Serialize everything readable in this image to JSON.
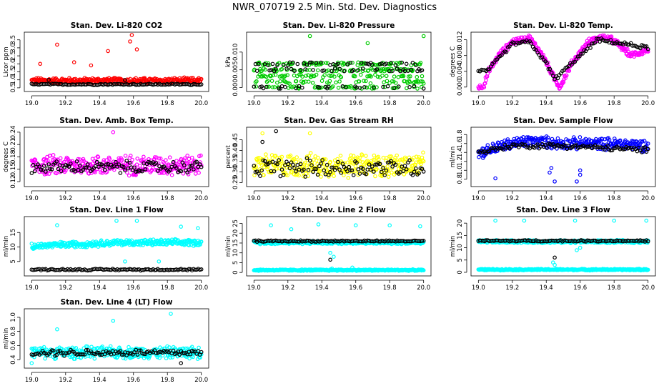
{
  "figure_title": "NWR_070719  2.5 Min. Std. Dev. Diagnostics",
  "colors": {
    "red": "#ff0000",
    "green": "#00cc00",
    "magenta": "#ff00ff",
    "yellow": "#ffff00",
    "blue": "#0000ff",
    "cyan": "#00ffff",
    "black": "#000000"
  },
  "chart_data": [
    {
      "type": "scatter",
      "title": "Stan. Dev. Li-820 CO2",
      "ylabel": "Licor ppm",
      "x_ticks": [
        "19.0",
        "19.2",
        "19.4",
        "19.6",
        "19.8",
        "20.0"
      ],
      "xlim": [
        19.0,
        20.0
      ],
      "y_ticks": [
        "0.5",
        "1.0",
        "1.5",
        "2.0",
        "2.5",
        "3.0",
        "3.5"
      ],
      "y_tick_values": [
        0.5,
        1.0,
        1.5,
        2.0,
        2.5,
        3.0,
        3.5
      ],
      "ylim": [
        0.45,
        3.8
      ],
      "series": [
        {
          "color": "red",
          "base": 0.95,
          "spread": 0.3,
          "outliers": [
            [
              19.05,
              2.0
            ],
            [
              19.15,
              3.2
            ],
            [
              19.25,
              2.1
            ],
            [
              19.45,
              2.8
            ],
            [
              19.58,
              3.4
            ],
            [
              19.59,
              3.8
            ],
            [
              19.62,
              2.9
            ],
            [
              19.35,
              1.9
            ]
          ]
        },
        {
          "color": "black",
          "base": 0.72,
          "spread": 0.08,
          "outliers": [
            [
              19.1,
              1.0
            ],
            [
              19.55,
              0.98
            ]
          ]
        }
      ]
    },
    {
      "type": "scatter",
      "title": "Stan. Dev. Li-820 Pressure",
      "ylabel": "kPa",
      "x_ticks": [
        "19.0",
        "19.2",
        "19.4",
        "19.6",
        "19.8",
        "20.0"
      ],
      "xlim": [
        19.0,
        20.0
      ],
      "y_ticks": [
        "0.000",
        "0.005",
        "0.010"
      ],
      "y_tick_values": [
        0.0,
        0.005,
        0.01
      ],
      "ylim": [
        -0.0003,
        0.0148
      ],
      "series": [
        {
          "color": "green",
          "levels": [
            0.0,
            0.0015,
            0.0033,
            0.005,
            0.0067
          ],
          "outliers": [
            [
              19.33,
              0.0145
            ],
            [
              19.67,
              0.0125
            ],
            [
              20.0,
              0.0145
            ]
          ]
        },
        {
          "color": "black",
          "levels": [
            0.0,
            0.005,
            0.0067
          ],
          "outliers": []
        }
      ]
    },
    {
      "type": "scatter",
      "title": "Stan. Dev. Li-820 Temp.",
      "ylabel": "degrees C",
      "x_ticks": [
        "19.0",
        "19.2",
        "19.4",
        "19.6",
        "19.8",
        "20.0"
      ],
      "xlim": [
        19.0,
        20.0
      ],
      "y_ticks": [
        "0.000",
        "0.004",
        "0.008",
        "0.012"
      ],
      "y_tick_values": [
        0.0,
        0.004,
        0.008,
        0.012
      ],
      "ylim": [
        -0.0004,
        0.0132
      ],
      "series": [
        {
          "color": "magenta",
          "curve": [
            [
              19.0,
              0.0
            ],
            [
              19.03,
              0.0
            ],
            [
              19.06,
              0.004
            ],
            [
              19.12,
              0.008
            ],
            [
              19.2,
              0.0115
            ],
            [
              19.3,
              0.0125
            ],
            [
              19.38,
              0.008
            ],
            [
              19.45,
              0.002
            ],
            [
              19.48,
              0.0
            ],
            [
              19.55,
              0.006
            ],
            [
              19.65,
              0.0115
            ],
            [
              19.75,
              0.013
            ],
            [
              19.82,
              0.011
            ],
            [
              19.9,
              0.008
            ],
            [
              20.0,
              0.0095
            ]
          ],
          "spread": 0.0013
        },
        {
          "color": "black",
          "curve": [
            [
              19.05,
              0.004
            ],
            [
              19.2,
              0.011
            ],
            [
              19.3,
              0.0115
            ],
            [
              19.4,
              0.006
            ],
            [
              19.45,
              0.002
            ],
            [
              19.55,
              0.006
            ],
            [
              19.7,
              0.012
            ],
            [
              19.85,
              0.011
            ],
            [
              20.0,
              0.01
            ]
          ],
          "spread": 0.0008
        }
      ]
    },
    {
      "type": "scatter",
      "title": "Stan. Dev. Amb. Box Temp.",
      "ylabel": "degrees C",
      "x_ticks": [
        "19.0",
        "19.2",
        "19.4",
        "19.6",
        "19.8",
        "20.0"
      ],
      "xlim": [
        19.0,
        20.0
      ],
      "y_ticks": [
        "0.12",
        "0.15",
        "0.18",
        "0.21",
        "0.24"
      ],
      "y_tick_values": [
        0.12,
        0.15,
        0.18,
        0.21,
        0.24
      ],
      "ylim": [
        0.115,
        0.245
      ],
      "series": [
        {
          "color": "magenta",
          "base": 0.16,
          "spread": 0.04,
          "outliers": [
            [
              19.48,
              0.24
            ]
          ]
        },
        {
          "color": "black",
          "base": 0.155,
          "spread": 0.025,
          "outliers": []
        }
      ]
    },
    {
      "type": "scatter",
      "title": "Stan. Dev. Gas Stream RH",
      "ylabel": "percent",
      "x_ticks": [
        "19.0",
        "19.2",
        "19.4",
        "19.6",
        "19.8",
        "20.0"
      ],
      "xlim": [
        19.0,
        20.0
      ],
      "y_ticks": [
        "0.25",
        "0.30",
        "0.35",
        "0.40",
        "0.45"
      ],
      "y_tick_values": [
        0.25,
        0.3,
        0.35,
        0.4,
        0.45
      ],
      "ylim": [
        0.245,
        0.495
      ],
      "series": [
        {
          "color": "yellow",
          "base": 0.33,
          "spread": 0.09,
          "outliers": [
            [
              19.05,
              0.48
            ],
            [
              19.33,
              0.48
            ]
          ]
        },
        {
          "color": "black",
          "base": 0.32,
          "spread": 0.07,
          "outliers": [
            [
              19.13,
              0.49
            ],
            [
              19.05,
              0.44
            ]
          ]
        }
      ]
    },
    {
      "type": "scatter",
      "title": "Stan. Dev. Sample Flow",
      "ylabel": "ml/min",
      "x_ticks": [
        "19.0",
        "19.2",
        "19.4",
        "19.6",
        "19.8",
        "20.0"
      ],
      "xlim": [
        19.0,
        20.0
      ],
      "y_ticks": [
        "0.8",
        "1.0",
        "1.2",
        "1.4",
        "1.6",
        "1.8"
      ],
      "y_tick_values": [
        0.8,
        1.0,
        1.2,
        1.4,
        1.6,
        1.8
      ],
      "ylim": [
        0.7,
        1.9
      ],
      "series": [
        {
          "color": "blue",
          "curve": [
            [
              19.0,
              1.38
            ],
            [
              19.1,
              1.5
            ],
            [
              19.2,
              1.6
            ],
            [
              19.3,
              1.65
            ],
            [
              19.5,
              1.6
            ],
            [
              19.7,
              1.6
            ],
            [
              19.9,
              1.58
            ],
            [
              20.0,
              1.55
            ]
          ],
          "spread": 0.22,
          "outliers": [
            [
              19.1,
              0.82
            ],
            [
              19.45,
              0.75
            ],
            [
              19.42,
              0.95
            ],
            [
              19.43,
              1.05
            ],
            [
              19.58,
              0.75
            ],
            [
              19.6,
              0.9
            ],
            [
              19.6,
              1.0
            ]
          ]
        },
        {
          "color": "black",
          "curve": [
            [
              19.0,
              1.4
            ],
            [
              19.2,
              1.55
            ],
            [
              19.5,
              1.55
            ],
            [
              20.0,
              1.45
            ]
          ],
          "spread": 0.1,
          "outliers": []
        }
      ]
    },
    {
      "type": "scatter",
      "title": "Stan. Dev. Line 1 Flow",
      "ylabel": "ml/min",
      "x_ticks": [
        "19.0",
        "19.2",
        "19.4",
        "19.6",
        "19.8",
        "20.0"
      ],
      "xlim": [
        19.0,
        20.0
      ],
      "y_ticks": [
        "5",
        "10",
        "15"
      ],
      "y_tick_values": [
        5,
        10,
        15
      ],
      "ylim": [
        1,
        19.5
      ],
      "series": [
        {
          "color": "cyan",
          "curve": [
            [
              19.0,
              10.3
            ],
            [
              19.5,
              11.5
            ],
            [
              20.0,
              11.5
            ]
          ],
          "spread": 1.8,
          "outliers": [
            [
              19.15,
              17.5
            ],
            [
              19.5,
              19.0
            ],
            [
              19.62,
              19.0
            ],
            [
              19.88,
              17.0
            ],
            [
              19.98,
              16.5
            ],
            [
              19.55,
              5.0
            ],
            [
              19.75,
              5.0
            ]
          ]
        },
        {
          "color": "black",
          "base": 2.2,
          "spread": 0.5,
          "outliers": []
        }
      ]
    },
    {
      "type": "scatter",
      "title": "Stan. Dev. Line 2 Flow",
      "ylabel": "ml/min",
      "x_ticks": [
        "19.0",
        "19.2",
        "19.4",
        "19.6",
        "19.8",
        "20.0"
      ],
      "xlim": [
        19.0,
        20.0
      ],
      "y_ticks": [
        "0",
        "5",
        "10",
        "15",
        "20",
        "25"
      ],
      "y_tick_values": [
        0,
        5,
        10,
        15,
        20,
        25
      ],
      "ylim": [
        -0.3,
        27
      ],
      "series": [
        {
          "color": "cyan",
          "base": 15.2,
          "spread": 1.2,
          "outliers": [
            [
              19.1,
              24.0
            ],
            [
              19.22,
              22.0
            ],
            [
              19.38,
              24.5
            ],
            [
              19.6,
              24.0
            ],
            [
              19.8,
              24.0
            ],
            [
              19.98,
              23.5
            ],
            [
              19.45,
              10.0
            ],
            [
              19.47,
              8.0
            ],
            [
              19.58,
              2.5
            ],
            [
              19.46,
              2.0
            ]
          ]
        },
        {
          "color": "cyan",
          "base": 1.2,
          "spread": 0.6,
          "outliers": []
        },
        {
          "color": "black",
          "base": 16.0,
          "spread": 0.6,
          "outliers": [
            [
              19.45,
              6.5
            ]
          ]
        }
      ]
    },
    {
      "type": "scatter",
      "title": "Stan. Dev. Line 3 Flow",
      "ylabel": "ml/min",
      "x_ticks": [
        "19.0",
        "19.2",
        "19.4",
        "19.6",
        "19.8",
        "20.0"
      ],
      "xlim": [
        19.0,
        20.0
      ],
      "y_ticks": [
        "0",
        "5",
        "10",
        "15",
        "20"
      ],
      "y_tick_values": [
        0,
        5,
        10,
        15,
        20
      ],
      "ylim": [
        -0.3,
        21.5
      ],
      "series": [
        {
          "color": "cyan",
          "base": 12.5,
          "spread": 1.0,
          "outliers": [
            [
              19.1,
              21.0
            ],
            [
              19.27,
              21.0
            ],
            [
              19.57,
              21.0
            ],
            [
              19.8,
              21.0
            ],
            [
              19.99,
              21.0
            ],
            [
              19.44,
              4.0
            ],
            [
              19.45,
              3.0
            ],
            [
              19.58,
              9.0
            ],
            [
              19.6,
              10.0
            ]
          ]
        },
        {
          "color": "cyan",
          "base": 1.1,
          "spread": 0.5,
          "outliers": []
        },
        {
          "color": "black",
          "base": 12.8,
          "spread": 0.5,
          "outliers": [
            [
              19.45,
              6.0
            ]
          ]
        }
      ]
    },
    {
      "type": "scatter",
      "title": "Stan. Dev. Line 4 (LT) Flow",
      "ylabel": "ml/min",
      "x_ticks": [
        "19.0",
        "19.2",
        "19.4",
        "19.6",
        "19.8",
        "20.0"
      ],
      "xlim": [
        19.0,
        20.0
      ],
      "y_ticks": [
        "0.4",
        "0.6",
        "0.8",
        "1.0"
      ],
      "y_tick_values": [
        0.4,
        0.6,
        0.8,
        1.0
      ],
      "ylim": [
        0.32,
        1.08
      ],
      "series": [
        {
          "color": "cyan",
          "base": 0.5,
          "spread": 0.14,
          "outliers": [
            [
              19.15,
              0.83
            ],
            [
              19.48,
              0.95
            ],
            [
              19.82,
              1.05
            ],
            [
              19.0,
              0.35
            ]
          ]
        },
        {
          "color": "black",
          "base": 0.5,
          "spread": 0.08,
          "outliers": [
            [
              19.88,
              0.35
            ]
          ]
        }
      ]
    }
  ]
}
